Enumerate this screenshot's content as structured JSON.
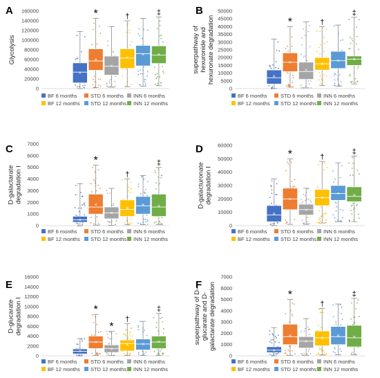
{
  "colors": {
    "BF_6": "#4472c4",
    "STD_6": "#ed7d31",
    "INN_6": "#a5a5a5",
    "BF_12": "#ffc000",
    "STD_12": "#5b9bd5",
    "INN_12": "#70ad47"
  },
  "legend": [
    {
      "key": "BF_6",
      "label": "BF 6 months"
    },
    {
      "key": "STD_6",
      "label": "STD 6 months"
    },
    {
      "key": "INN_6",
      "label": "INN 6 months"
    },
    {
      "key": "BF_12",
      "label": "BF 12 months"
    },
    {
      "key": "STD_12",
      "label": "STD 12 months"
    },
    {
      "key": "INN_12",
      "label": "INN 12 months"
    }
  ],
  "chart_data": [
    {
      "type": "box",
      "panel": "A",
      "ylabel": "Glycolysis",
      "ylim": [
        0,
        160000
      ],
      "yticks": [
        "0",
        "20000",
        "40000",
        "60000",
        "80000",
        "100000",
        "120000",
        "140000",
        "160000"
      ],
      "markers": [
        "",
        "*",
        "",
        "†",
        "",
        "‡"
      ],
      "series": [
        {
          "key": "BF_6",
          "q1": 12000,
          "median": 34000,
          "q3": 53000,
          "whisker_low": 0,
          "whisker_high": 118000,
          "mean": 33000
        },
        {
          "key": "STD_6",
          "q1": 38000,
          "median": 57000,
          "q3": 82000,
          "whisker_low": 2000,
          "whisker_high": 145000,
          "mean": 60000
        },
        {
          "key": "INN_6",
          "q1": 28000,
          "median": 46000,
          "q3": 67000,
          "whisker_low": 3000,
          "whisker_high": 128000,
          "mean": 47000
        },
        {
          "key": "BF_12",
          "q1": 42000,
          "median": 63000,
          "q3": 82000,
          "whisker_low": 4000,
          "whisker_high": 140000,
          "mean": 64000
        },
        {
          "key": "STD_12",
          "q1": 47000,
          "median": 72000,
          "q3": 89000,
          "whisker_low": 5000,
          "whisker_high": 145000,
          "mean": 71000
        },
        {
          "key": "INN_12",
          "q1": 52000,
          "median": 69000,
          "q3": 88000,
          "whisker_low": 6000,
          "whisker_high": 148000,
          "mean": 71000
        }
      ]
    },
    {
      "type": "box",
      "panel": "B",
      "ylabel": "superpathway of hexuronide and hexuronate degradation",
      "ylim": [
        0,
        50000
      ],
      "yticks": [
        "0",
        "5000",
        "10000",
        "15000",
        "20000",
        "25000",
        "30000",
        "35000",
        "40000",
        "45000",
        "50000"
      ],
      "markers": [
        "",
        "*",
        "",
        "†",
        "",
        "‡"
      ],
      "series": [
        {
          "key": "BF_6",
          "q1": 3000,
          "median": 7000,
          "q3": 12000,
          "whisker_low": 0,
          "whisker_high": 32000,
          "mean": 8000
        },
        {
          "key": "STD_6",
          "q1": 11000,
          "median": 17000,
          "q3": 23000,
          "whisker_low": 1000,
          "whisker_high": 40000,
          "mean": 17000
        },
        {
          "key": "INN_6",
          "q1": 6000,
          "median": 11000,
          "q3": 17000,
          "whisker_low": 500,
          "whisker_high": 43000,
          "mean": 12000
        },
        {
          "key": "BF_12",
          "q1": 12000,
          "median": 16000,
          "q3": 20000,
          "whisker_low": 2000,
          "whisker_high": 40000,
          "mean": 16000
        },
        {
          "key": "STD_12",
          "q1": 13000,
          "median": 18000,
          "q3": 24000,
          "whisker_low": 1500,
          "whisker_high": 41000,
          "mean": 18000
        },
        {
          "key": "INN_12",
          "q1": 15000,
          "median": 19000,
          "q3": 21000,
          "whisker_low": 3000,
          "whisker_high": 46000,
          "mean": 19000
        }
      ]
    },
    {
      "type": "box",
      "panel": "C",
      "ylabel": "D-galactarate degradation I",
      "ylim": [
        0,
        7000
      ],
      "yticks": [
        "0",
        "1000",
        "2000",
        "3000",
        "4000",
        "5000",
        "6000",
        "7000"
      ],
      "markers": [
        "",
        "*",
        "",
        "†",
        "",
        "‡"
      ],
      "series": [
        {
          "key": "BF_6",
          "q1": 300,
          "median": 500,
          "q3": 800,
          "whisker_low": 0,
          "whisker_high": 3600,
          "mean": 500
        },
        {
          "key": "STD_6",
          "q1": 1000,
          "median": 1600,
          "q3": 2700,
          "whisker_low": 50,
          "whisker_high": 5200,
          "mean": 1800
        },
        {
          "key": "INN_6",
          "q1": 600,
          "median": 1100,
          "q3": 1600,
          "whisker_low": 30,
          "whisker_high": 3200,
          "mean": 1100
        },
        {
          "key": "BF_12",
          "q1": 800,
          "median": 1400,
          "q3": 2200,
          "whisker_low": 80,
          "whisker_high": 4000,
          "mean": 1500
        },
        {
          "key": "STD_12",
          "q1": 1000,
          "median": 1700,
          "q3": 2500,
          "whisker_low": 100,
          "whisker_high": 4300,
          "mean": 1800
        },
        {
          "key": "INN_12",
          "q1": 800,
          "median": 1600,
          "q3": 2700,
          "whisker_low": 100,
          "whisker_high": 5000,
          "mean": 1700
        }
      ]
    },
    {
      "type": "box",
      "panel": "D",
      "ylabel": "D-galacturonate degradation I",
      "ylim": [
        0,
        60000
      ],
      "yticks": [
        "0",
        "10000",
        "20000",
        "30000",
        "40000",
        "50000",
        "60000"
      ],
      "markers": [
        "",
        "*",
        "",
        "†",
        "",
        "‡"
      ],
      "series": [
        {
          "key": "BF_6",
          "q1": 3000,
          "median": 8000,
          "q3": 15000,
          "whisker_low": 0,
          "whisker_high": 35000,
          "mean": 9000
        },
        {
          "key": "STD_6",
          "q1": 12000,
          "median": 20000,
          "q3": 28000,
          "whisker_low": 1000,
          "whisker_high": 50000,
          "mean": 20000
        },
        {
          "key": "INN_6",
          "q1": 8000,
          "median": 12000,
          "q3": 16000,
          "whisker_low": 1000,
          "whisker_high": 28000,
          "mean": 12000
        },
        {
          "key": "BF_12",
          "q1": 15000,
          "median": 21000,
          "q3": 27000,
          "whisker_low": 2000,
          "whisker_high": 48000,
          "mean": 21000
        },
        {
          "key": "STD_12",
          "q1": 19000,
          "median": 24000,
          "q3": 30000,
          "whisker_low": 3000,
          "whisker_high": 47000,
          "mean": 24000
        },
        {
          "key": "INN_12",
          "q1": 18000,
          "median": 22000,
          "q3": 29000,
          "whisker_low": 3000,
          "whisker_high": 52000,
          "mean": 23000
        }
      ]
    },
    {
      "type": "box",
      "panel": "E",
      "ylabel": "D-glucarate degradation I",
      "ylim": [
        0,
        16000
      ],
      "yticks": [
        "0",
        "2000",
        "4000",
        "6000",
        "8000",
        "10000",
        "12000",
        "14000",
        "16000"
      ],
      "markers": [
        "",
        "*",
        "*",
        "†",
        "",
        "‡"
      ],
      "series": [
        {
          "key": "BF_6",
          "q1": 400,
          "median": 900,
          "q3": 1400,
          "whisker_low": 0,
          "whisker_high": 3500,
          "mean": 1000
        },
        {
          "key": "STD_6",
          "q1": 1500,
          "median": 2800,
          "q3": 4000,
          "whisker_low": 100,
          "whisker_high": 8400,
          "mean": 2800
        },
        {
          "key": "INN_6",
          "q1": 700,
          "median": 1500,
          "q3": 2200,
          "whisker_low": 50,
          "whisker_high": 5000,
          "mean": 1400
        },
        {
          "key": "BF_12",
          "q1": 1000,
          "median": 2500,
          "q3": 3200,
          "whisker_low": 100,
          "whisker_high": 6500,
          "mean": 2300
        },
        {
          "key": "STD_12",
          "q1": 1200,
          "median": 2400,
          "q3": 3400,
          "whisker_low": 100,
          "whisker_high": 7000,
          "mean": 2400
        },
        {
          "key": "INN_12",
          "q1": 1500,
          "median": 2800,
          "q3": 4000,
          "whisker_low": 100,
          "whisker_high": 8600,
          "mean": 2900
        }
      ]
    },
    {
      "type": "box",
      "panel": "F",
      "ylabel": "superpathway of D-glucarate and D-galactarate degradation",
      "ylim": [
        0,
        7000
      ],
      "yticks": [
        "0",
        "1000",
        "2000",
        "3000",
        "4000",
        "5000",
        "6000",
        "7000"
      ],
      "markers": [
        "",
        "*",
        "",
        "†",
        "",
        "‡"
      ],
      "series": [
        {
          "key": "BF_6",
          "q1": 300,
          "median": 500,
          "q3": 800,
          "whisker_low": 0,
          "whisker_high": 2500,
          "mean": 500
        },
        {
          "key": "STD_6",
          "q1": 1000,
          "median": 1700,
          "q3": 2800,
          "whisker_low": 50,
          "whisker_high": 5000,
          "mean": 1800
        },
        {
          "key": "INN_6",
          "q1": 700,
          "median": 1300,
          "q3": 1700,
          "whisker_low": 50,
          "whisker_high": 3300,
          "mean": 1300
        },
        {
          "key": "BF_12",
          "q1": 900,
          "median": 1600,
          "q3": 2200,
          "whisker_low": 80,
          "whisker_high": 4200,
          "mean": 1600
        },
        {
          "key": "STD_12",
          "q1": 1000,
          "median": 1700,
          "q3": 2600,
          "whisker_low": 100,
          "whisker_high": 4600,
          "mean": 1800
        },
        {
          "key": "INN_12",
          "q1": 800,
          "median": 1600,
          "q3": 2700,
          "whisker_low": 100,
          "whisker_high": 5100,
          "mean": 1700
        }
      ]
    }
  ]
}
